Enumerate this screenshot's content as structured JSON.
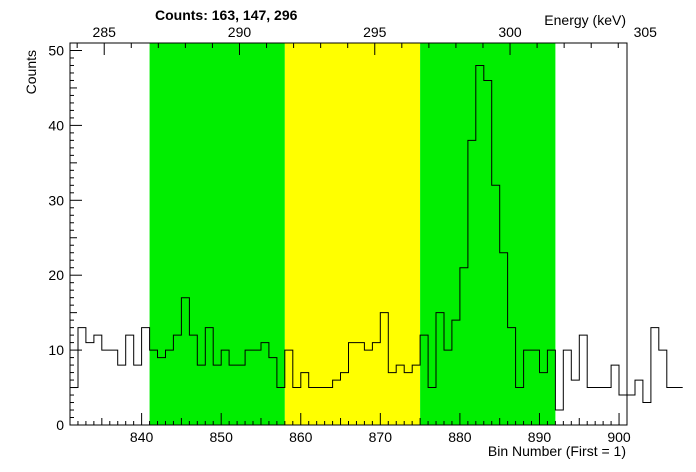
{
  "chart_data": {
    "type": "line",
    "title": "Counts:   163,   147,   296",
    "xlabel": "Bin Number (First = 1)",
    "ylabel": "Counts",
    "x2label": "Energy (keV)",
    "xlim": [
      831,
      901
    ],
    "ylim": [
      0,
      51
    ],
    "xticks": [
      840,
      850,
      860,
      870,
      880,
      890,
      900
    ],
    "yticks": [
      0,
      10,
      20,
      30,
      40,
      50
    ],
    "energy_ticks": [
      285,
      290,
      295,
      300,
      305
    ],
    "energy_tick_bins": [
      835.3,
      852.3,
      869.3,
      886.3,
      903.3
    ],
    "grid": false,
    "bin_start": 831,
    "bin_width": 1,
    "values": [
      5,
      13,
      11,
      12,
      10,
      10,
      8,
      12,
      8,
      13,
      10,
      9,
      10,
      12,
      17,
      12,
      8,
      13,
      8,
      10,
      8,
      8,
      10,
      10,
      11,
      9,
      5,
      10,
      5,
      7,
      5,
      5,
      5,
      6,
      7,
      11,
      11,
      10,
      11,
      15,
      7,
      8,
      7,
      8,
      12,
      5,
      15,
      10,
      14,
      21,
      38,
      48,
      46,
      32,
      23,
      13,
      5,
      10,
      10,
      7,
      10,
      2,
      10,
      6,
      12,
      5,
      5,
      5,
      8,
      4,
      4,
      6,
      3,
      13,
      10,
      5,
      5
    ],
    "regions": [
      {
        "from": 841,
        "to": 858,
        "color": "#00ee00"
      },
      {
        "from": 858,
        "to": 875,
        "color": "#ffff00"
      },
      {
        "from": 875,
        "to": 892,
        "color": "#00ee00"
      }
    ],
    "line_color": "#000000"
  }
}
